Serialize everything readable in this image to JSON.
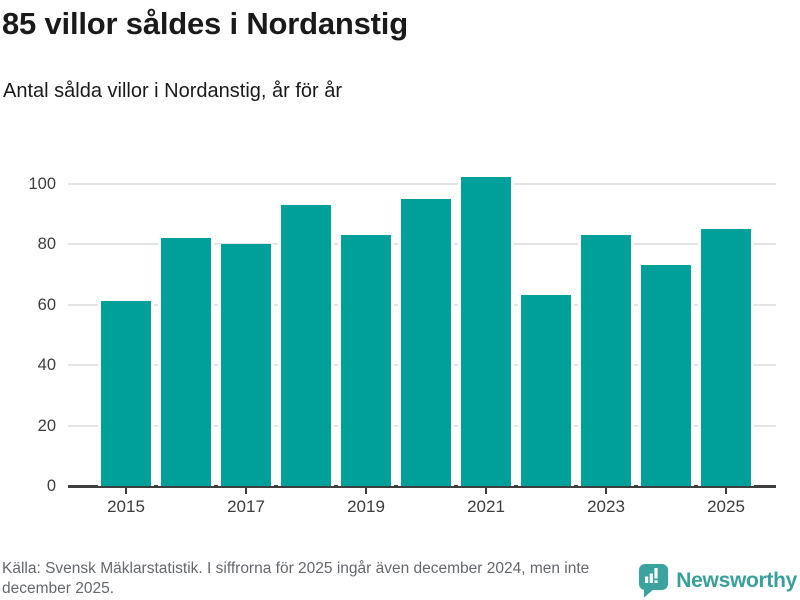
{
  "header": {
    "title": "85 villor såldes i Nordanstig",
    "subtitle": "Antal sålda villor i Nordanstig, år för år"
  },
  "chart_data": {
    "type": "bar",
    "title": "85 villor såldes i Nordanstig",
    "subtitle": "Antal sålda villor i Nordanstig, år för år",
    "categories": [
      "2015",
      "2016",
      "2017",
      "2018",
      "2019",
      "2020",
      "2021",
      "2022",
      "2023",
      "2024",
      "2025"
    ],
    "values": [
      61,
      82,
      80,
      93,
      83,
      95,
      102,
      63,
      83,
      73,
      85
    ],
    "xlabel": "",
    "ylabel": "",
    "ylim": [
      0,
      110
    ],
    "yticks": [
      0,
      20,
      40,
      60,
      80,
      100
    ],
    "xtick_labels": [
      "2015",
      "2017",
      "2019",
      "2021",
      "2023",
      "2025"
    ],
    "grid": true,
    "legend": "none",
    "bar_color": "#00a09a"
  },
  "footer": {
    "source_text": "Källa: Svensk Mäklarstatistik. I siffrorna för 2025 ingår även december 2024, men inte december 2025.",
    "brand_name": "Newsworthy"
  },
  "colors": {
    "bar": "#00a09a",
    "axis": "#3e3e3e",
    "gridline": "#e4e4e4",
    "title_text": "#1a1a1a",
    "tick_label": "#3d3d3d",
    "footer_text": "#64686d",
    "brand_teal": "#38a09b"
  },
  "icons": {
    "brand_logo": "bar-chart-speech-bubble-icon"
  }
}
